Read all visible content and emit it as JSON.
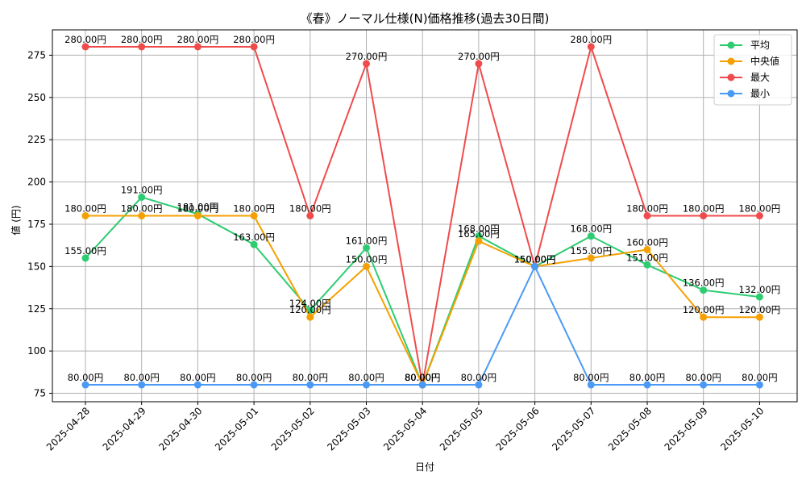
{
  "chart_data": {
    "type": "line",
    "title": "《春》ノーマル仕様(N)価格推移(過去30日間)",
    "xlabel": "日付",
    "ylabel": "値 (円)",
    "ylim": [
      70,
      290
    ],
    "yticks": [
      75,
      100,
      125,
      150,
      175,
      200,
      225,
      250,
      275
    ],
    "grid": true,
    "legend_position": "top-right",
    "value_suffix": "円",
    "categories": [
      "2025-04-28",
      "2025-04-29",
      "2025-04-30",
      "2025-05-01",
      "2025-05-02",
      "2025-05-03",
      "2025-05-04",
      "2025-05-05",
      "2025-05-06",
      "2025-05-07",
      "2025-05-08",
      "2025-05-09",
      "2025-05-10"
    ],
    "series": [
      {
        "name": "平均",
        "color": "#2ecc71",
        "values": [
          155,
          191,
          181,
          163,
          124,
          161,
          80,
          168,
          150,
          168,
          151,
          136,
          132
        ]
      },
      {
        "name": "中央値",
        "color": "#f5a000",
        "values": [
          180,
          180,
          180,
          180,
          120,
          150,
          80,
          165,
          150,
          155,
          160,
          120,
          120
        ]
      },
      {
        "name": "最大",
        "color": "#f04b4b",
        "values": [
          280,
          280,
          280,
          280,
          180,
          270,
          80,
          270,
          150,
          280,
          180,
          180,
          180
        ]
      },
      {
        "name": "最小",
        "color": "#4a9af5",
        "values": [
          80,
          80,
          80,
          80,
          80,
          80,
          80,
          80,
          150,
          80,
          80,
          80,
          80
        ]
      }
    ]
  }
}
